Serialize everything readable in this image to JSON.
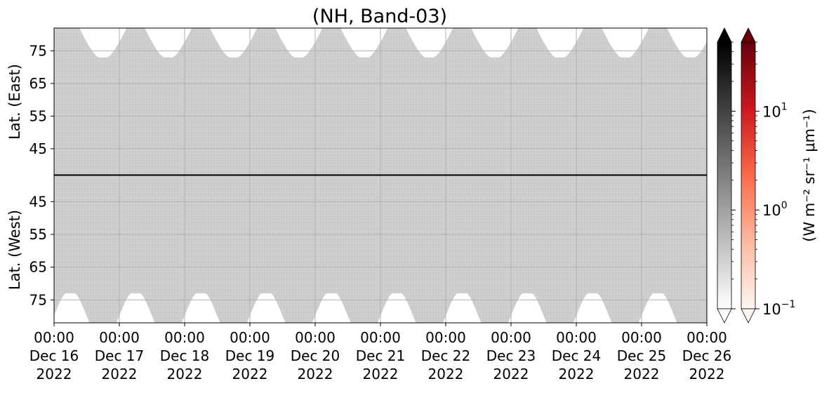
{
  "chart_data": {
    "type": "heatmap",
    "title": "(NH, Band-03)",
    "panels": [
      {
        "name": "east",
        "ylabel": "Lat. (East)",
        "yticks": [
          45,
          55,
          65,
          75
        ],
        "ylim": [
          37,
          82
        ]
      },
      {
        "name": "west",
        "ylabel": "Lat. (West)",
        "yticks": [
          75,
          65,
          55,
          45
        ],
        "ylim": [
          82,
          37
        ]
      }
    ],
    "x": {
      "ticks": [
        {
          "time": "00:00",
          "day": "Dec 16",
          "year": "2022"
        },
        {
          "time": "00:00",
          "day": "Dec 17",
          "year": "2022"
        },
        {
          "time": "00:00",
          "day": "Dec 18",
          "year": "2022"
        },
        {
          "time": "00:00",
          "day": "Dec 19",
          "year": "2022"
        },
        {
          "time": "00:00",
          "day": "Dec 20",
          "year": "2022"
        },
        {
          "time": "00:00",
          "day": "Dec 21",
          "year": "2022"
        },
        {
          "time": "00:00",
          "day": "Dec 22",
          "year": "2022"
        },
        {
          "time": "00:00",
          "day": "Dec 23",
          "year": "2022"
        },
        {
          "time": "00:00",
          "day": "Dec 24",
          "year": "2022"
        },
        {
          "time": "00:00",
          "day": "Dec 25",
          "year": "2022"
        },
        {
          "time": "00:00",
          "day": "Dec 26",
          "year": "2022"
        }
      ],
      "range": [
        "2022-12-16 00:00",
        "2022-12-26 00:00"
      ]
    },
    "coverage": {
      "fill_color": "#d3d3d3",
      "east_gap_top_lat": 73,
      "west_gap_top_lat": 73,
      "gap_centers_east": [
        "2022-12-16 18:00",
        "2022-12-17 18:00",
        "2022-12-18 18:00",
        "2022-12-19 18:00",
        "2022-12-20 18:00",
        "2022-12-21 18:00",
        "2022-12-22 18:00",
        "2022-12-23 18:00",
        "2022-12-24 18:00",
        "2022-12-25 18:00"
      ],
      "gap_centers_west": [
        "2022-12-16 06:00",
        "2022-12-17 06:00",
        "2022-12-18 06:00",
        "2022-12-19 06:00",
        "2022-12-20 06:00",
        "2022-12-21 06:00",
        "2022-12-22 06:00",
        "2022-12-23 06:00",
        "2022-12-24 06:00",
        "2022-12-25 06:00"
      ]
    },
    "colorbars": [
      {
        "name": "gray",
        "colormap": "Greys",
        "colors": [
          "#ffffff",
          "#000000"
        ],
        "extend": "both"
      },
      {
        "name": "red",
        "colormap": "Reds",
        "colors": [
          "#fff5f0",
          "#fcbba1",
          "#fb6a4a",
          "#cb181d",
          "#67000d"
        ],
        "extend": "both"
      }
    ],
    "colorbar_scale": "log",
    "colorbar_range": [
      0.1,
      50
    ],
    "colorbar_ticks": [
      {
        "base": "10",
        "exp": "1"
      },
      {
        "base": "10",
        "exp": "0"
      },
      {
        "base": "10",
        "exp": "−1"
      }
    ],
    "colorbar_label": "(W m⁻² sr⁻¹ μm⁻¹)",
    "grid": true
  }
}
